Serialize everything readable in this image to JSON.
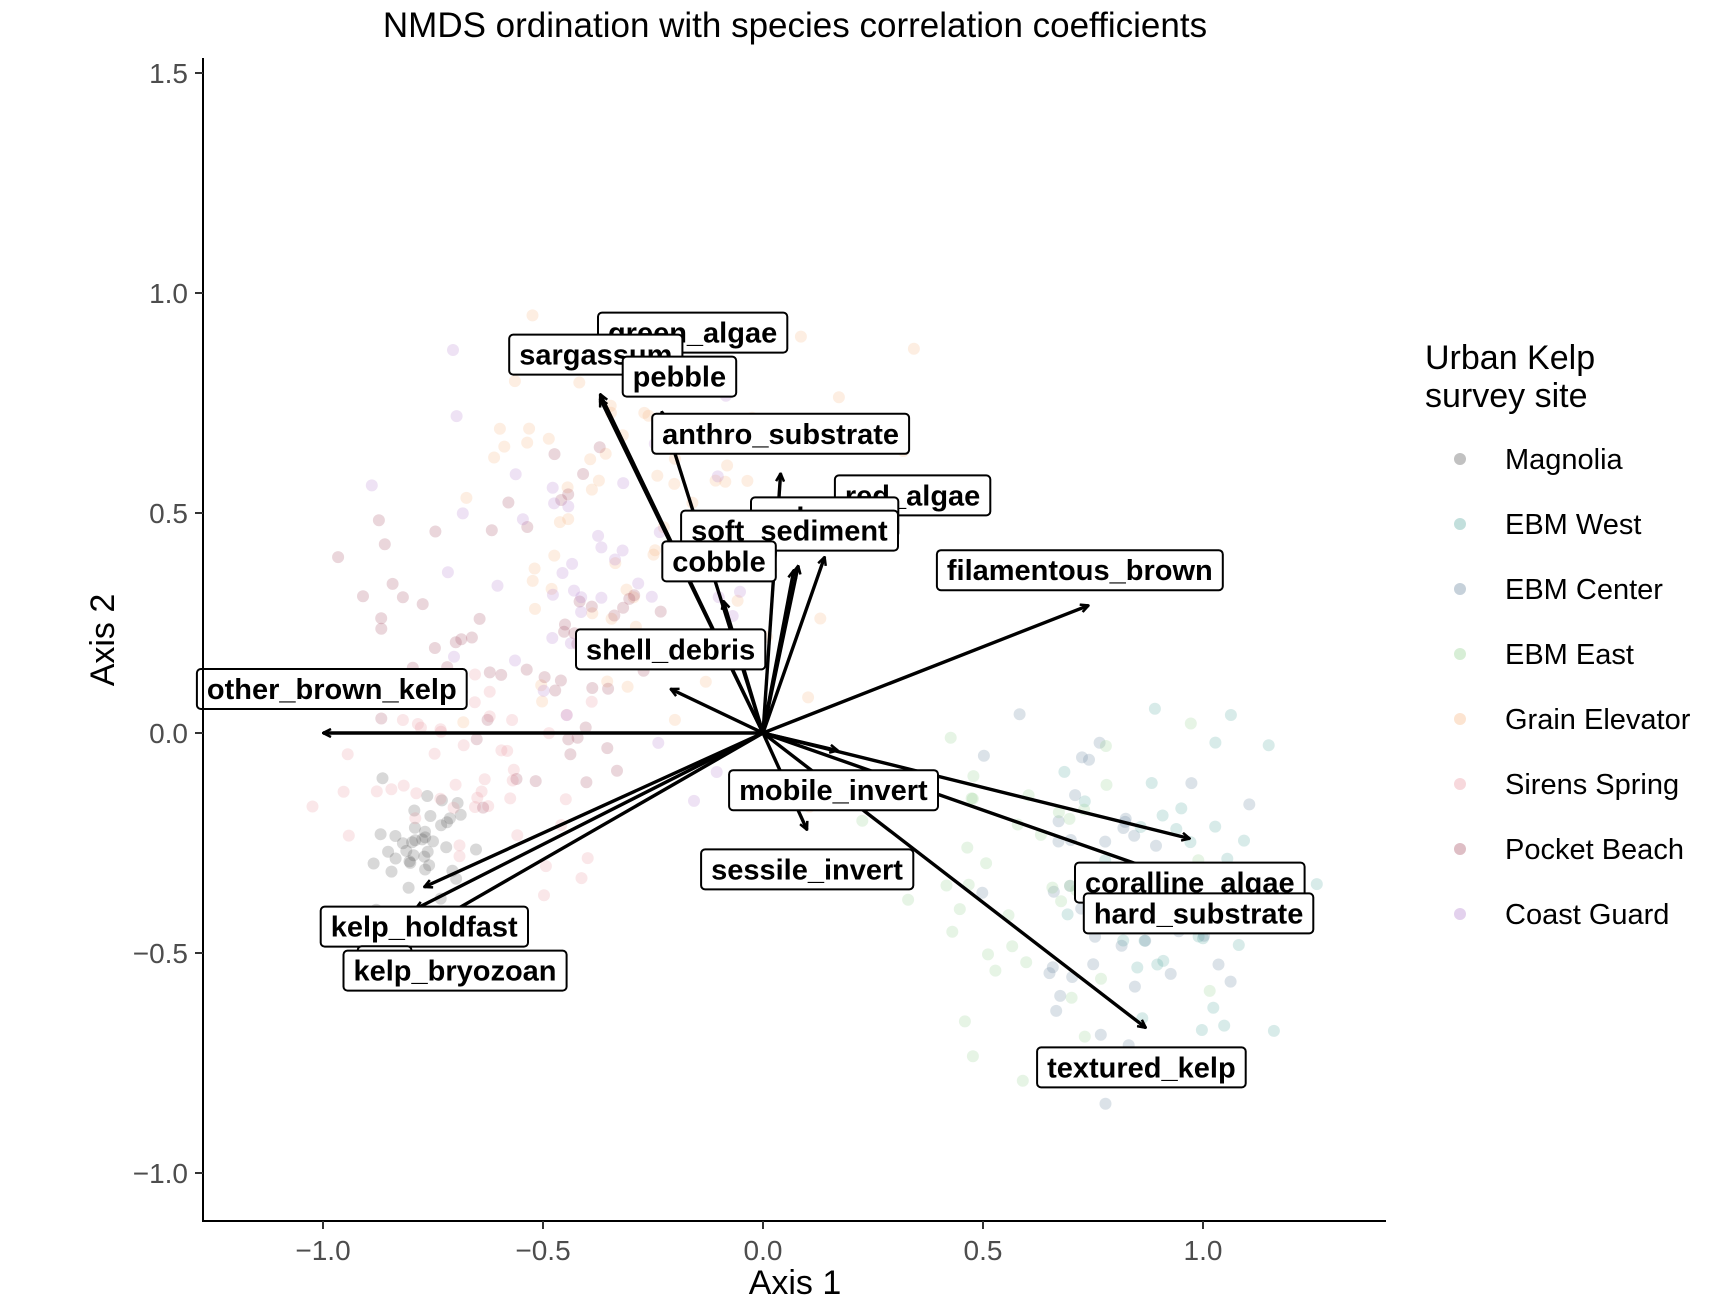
{
  "chart_data": {
    "type": "scatter",
    "title": "NMDS ordination with species correlation coefficients",
    "xlabel": "Axis 1",
    "ylabel": "Axis 2",
    "xlim": [
      -1.27,
      1.42
    ],
    "ylim": [
      -1.11,
      1.53
    ],
    "xticks": [
      -1.0,
      -0.5,
      0.0,
      0.5,
      1.0
    ],
    "xtick_labels": [
      "−1.0",
      "−0.5",
      "0.0",
      "0.5",
      "1.0"
    ],
    "yticks": [
      -1.0,
      -0.5,
      0.0,
      0.5,
      1.0,
      1.5
    ],
    "ytick_labels": [
      "−1.0",
      "−0.5",
      "0.0",
      "0.5",
      "1.0",
      "1.5"
    ],
    "grid": false,
    "legend": {
      "title_lines": [
        "Urban Kelp",
        "survey site"
      ],
      "position": "right",
      "entries": [
        {
          "name": "Magnolia",
          "color": "#4d4d4d"
        },
        {
          "name": "EBM West",
          "color": "#4fa39c"
        },
        {
          "name": "EBM Center",
          "color": "#5b7a96"
        },
        {
          "name": "EBM East",
          "color": "#8ccf8a"
        },
        {
          "name": "Grain Elevator",
          "color": "#f5b27a"
        },
        {
          "name": "Sirens Spring",
          "color": "#e9909c"
        },
        {
          "name": "Pocket Beach",
          "color": "#a0465a"
        },
        {
          "name": "Coast Guard",
          "color": "#b07acc"
        }
      ]
    },
    "vectors": [
      {
        "label": "green_algae",
        "x": -0.37,
        "y": 0.77,
        "lx": -0.16,
        "ly": 0.91
      },
      {
        "label": "sargassum",
        "x": -0.37,
        "y": 0.76,
        "lx": -0.38,
        "ly": 0.86
      },
      {
        "label": "pebble",
        "x": -0.23,
        "y": 0.73,
        "lx": -0.19,
        "ly": 0.81
      },
      {
        "label": "anthro_substrate",
        "x": 0.04,
        "y": 0.59,
        "lx": 0.04,
        "ly": 0.68
      },
      {
        "label": "red_algae",
        "x": 0.14,
        "y": 0.4,
        "lx": 0.34,
        "ly": 0.54
      },
      {
        "label": "unknown",
        "x": 0.08,
        "y": 0.38,
        "lx": 0.14,
        "ly": 0.49
      },
      {
        "label": "soft_sediment",
        "x": 0.07,
        "y": 0.37,
        "lx": 0.06,
        "ly": 0.46
      },
      {
        "label": "cobble",
        "x": -0.09,
        "y": 0.3,
        "lx": -0.1,
        "ly": 0.39
      },
      {
        "label": "filamentous_brown",
        "x": 0.74,
        "y": 0.29,
        "lx": 0.72,
        "ly": 0.37
      },
      {
        "label": "shell_debris",
        "x": -0.21,
        "y": 0.1,
        "lx": -0.21,
        "ly": 0.19
      },
      {
        "label": "other_brown_kelp",
        "x": -1.0,
        "y": 0.0,
        "lx": -0.98,
        "ly": 0.1
      },
      {
        "label": "mobile_invert",
        "x": 0.17,
        "y": -0.04,
        "lx": 0.16,
        "ly": -0.13
      },
      {
        "label": "sessile_invert",
        "x": 0.1,
        "y": -0.22,
        "lx": 0.1,
        "ly": -0.31
      },
      {
        "label": "coralline_algae",
        "x": 0.97,
        "y": -0.24,
        "lx": 0.97,
        "ly": -0.34
      },
      {
        "label": "hard_substrate",
        "x": 0.97,
        "y": -0.34,
        "lx": 0.99,
        "ly": -0.41
      },
      {
        "label": "textured_kelp",
        "x": 0.87,
        "y": -0.67,
        "lx": 0.86,
        "ly": -0.76
      },
      {
        "label": "kelp_holdfast",
        "x": -0.77,
        "y": -0.35,
        "lx": -0.77,
        "ly": -0.44
      },
      {
        "label": "substrate_other",
        "display": "su",
        "x": -0.79,
        "y": -0.4,
        "lx": -0.86,
        "ly": -0.53
      },
      {
        "label": "kelp_bryozoan",
        "x": -0.73,
        "y": -0.42,
        "lx": -0.7,
        "ly": -0.54
      }
    ]
  }
}
